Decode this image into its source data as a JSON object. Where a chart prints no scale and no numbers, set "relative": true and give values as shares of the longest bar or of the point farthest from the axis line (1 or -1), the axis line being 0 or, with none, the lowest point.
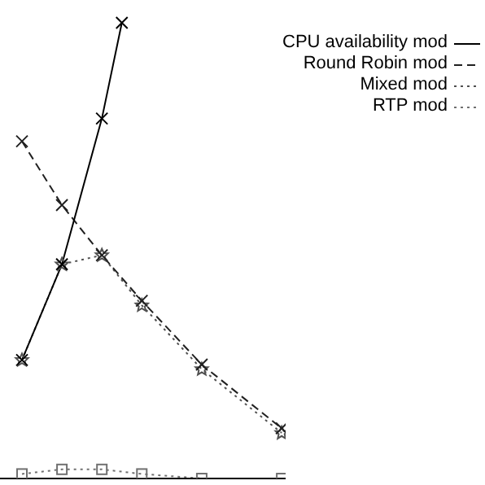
{
  "chart_data": {
    "type": "line",
    "relative": true,
    "categories": [
      null,
      null,
      null,
      null,
      null,
      null,
      null,
      null,
      null,
      null,
      null,
      null,
      null,
      null,
      null
    ],
    "legend": "top right",
    "series": [
      {
        "name": "CPU availability mod",
        "color": "#000000",
        "line_style": "solid",
        "marker": "cross",
        "values": [
          null,
          0.26,
          null,
          0.47,
          null,
          0.79,
          1,
          null,
          null,
          null,
          null,
          null,
          null,
          null,
          null
        ]
      },
      {
        "name": "Round Robin mod",
        "color": "#202020",
        "line_style": "dashed",
        "marker": "cross",
        "values": [
          null,
          0.74,
          null,
          0.6,
          null,
          0.49,
          null,
          0.39,
          null,
          null,
          0.25,
          null,
          null,
          null,
          0.11
        ]
      },
      {
        "name": "Mixed mod",
        "color": "#505050",
        "line_style": "dotted",
        "marker": "star",
        "values": [
          null,
          0.26,
          null,
          0.47,
          null,
          0.49,
          null,
          0.38,
          null,
          null,
          0.24,
          null,
          null,
          null,
          0.1
        ]
      },
      {
        "name": "RTP mod",
        "color": "#707070",
        "line_style": "dotted",
        "marker": "square",
        "values": [
          null,
          0.01,
          null,
          0.02,
          null,
          0.02,
          null,
          0.01,
          null,
          null,
          0,
          null,
          null,
          null,
          0
        ]
      }
    ]
  }
}
